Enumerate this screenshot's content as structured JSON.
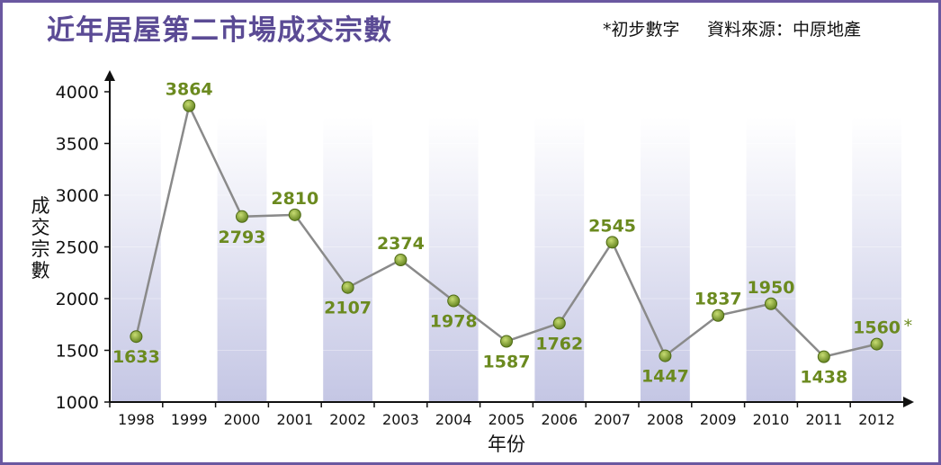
{
  "header": {
    "title": "近年居屋第二市場成交宗數",
    "note": "*初步數字",
    "source": "資料來源：中原地產"
  },
  "chart_data": {
    "type": "line",
    "title": "近年居屋第二市場成交宗數",
    "xlabel": "年份",
    "ylabel": "成交宗數",
    "categories": [
      "1998",
      "1999",
      "2000",
      "2001",
      "2002",
      "2003",
      "2004",
      "2005",
      "2006",
      "2007",
      "2008",
      "2009",
      "2010",
      "2011",
      "2012"
    ],
    "values": [
      1633,
      3864,
      2793,
      2810,
      2107,
      2374,
      1978,
      1587,
      1762,
      2545,
      1447,
      1837,
      1950,
      1438,
      1560
    ],
    "value_labels": [
      "1633",
      "3864",
      "2793",
      "2810",
      "2107",
      "2374",
      "1978",
      "1587",
      "1762",
      "2545",
      "1447",
      "1837",
      "1950",
      "1438",
      "1560"
    ],
    "label_side": [
      "below",
      "above",
      "below",
      "above",
      "below",
      "above",
      "below",
      "below",
      "below",
      "above",
      "below",
      "above",
      "above",
      "below",
      "above"
    ],
    "yticks": [
      "1000",
      "1500",
      "2000",
      "2500",
      "3000",
      "3500",
      "4000"
    ],
    "ylim": [
      1000,
      4000
    ],
    "preliminary_marker": "*",
    "preliminary_index": 14,
    "colors": {
      "line": "#8a8a8a",
      "marker": "#7a9a2e",
      "label": "#6b8a1f",
      "title": "#5b4b95",
      "band": "#c9cbe6"
    }
  }
}
